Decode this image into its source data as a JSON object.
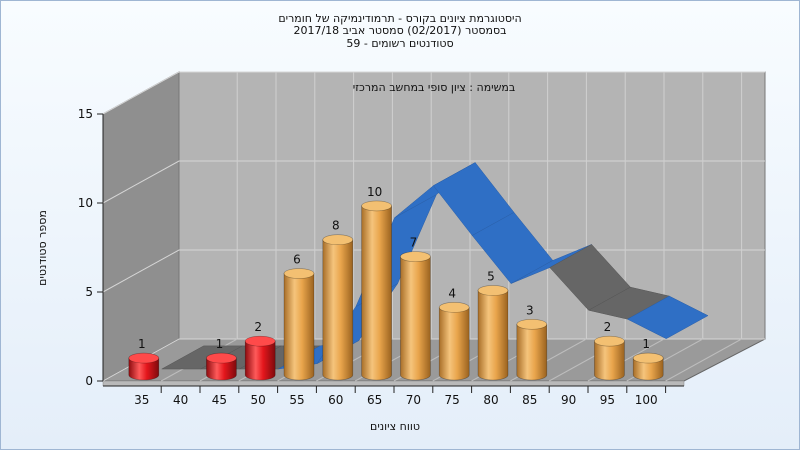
{
  "title_lines": [
    "היסטוגרמת ציונים בקורס - תרמודינמיקה של חומרים",
    "בסמסטר  (02/2017)  סמסטר אביב 2017/18",
    "סטודנטים רשומים - 59"
  ],
  "chart_data": {
    "type": "bar",
    "subtitle": "במשימה : ציון סופי במחשב המרכזי",
    "xlabel": "טווח ציונים",
    "ylabel": "מספר סטודנטים",
    "ylim": [
      0,
      15
    ],
    "yticks": [
      "0",
      "5",
      "10",
      "15"
    ],
    "x_tick_labels": [
      "35",
      "40",
      "45",
      "50",
      "55",
      "60",
      "65",
      "70",
      "75",
      "80",
      "85",
      "90",
      "95",
      "100"
    ],
    "bars": [
      {
        "x": 35,
        "value": 1,
        "label": "1",
        "status": "fail"
      },
      {
        "x": 45,
        "value": 1,
        "label": "1",
        "status": "fail"
      },
      {
        "x": 50,
        "value": 2,
        "label": "2",
        "status": "fail"
      },
      {
        "x": 55,
        "value": 6,
        "label": "6",
        "status": "pass"
      },
      {
        "x": 60,
        "value": 8,
        "label": "8",
        "status": "pass"
      },
      {
        "x": 65,
        "value": 10,
        "label": "10",
        "status": "pass"
      },
      {
        "x": 70,
        "value": 7,
        "label": "7",
        "status": "pass"
      },
      {
        "x": 75,
        "value": 4,
        "label": "4",
        "status": "pass"
      },
      {
        "x": 80,
        "value": 5,
        "label": "5",
        "status": "pass"
      },
      {
        "x": 85,
        "value": 3,
        "label": "3",
        "status": "pass"
      },
      {
        "x": 95,
        "value": 2,
        "label": "2",
        "status": "pass"
      },
      {
        "x": 100,
        "value": 1,
        "label": "1",
        "status": "pass"
      }
    ],
    "trend_series": {
      "x": [
        35,
        40,
        45,
        50,
        55,
        60,
        65,
        70,
        75,
        80,
        85,
        90,
        95,
        100
      ],
      "y": [
        0,
        0,
        0,
        0,
        0.3,
        3.5,
        8.5,
        10.3,
        7.5,
        4.8,
        5.7,
        3.3,
        2.8,
        1.7
      ]
    },
    "grid": true,
    "legend": "none",
    "colors": {
      "fail": "#e4161c",
      "pass": "#e9a54c",
      "trend": "#2f6fc5",
      "trend_dark": "#666666",
      "left_wall": "#8f8f8f",
      "back_wall": "#b4b4b4",
      "floor": "#9a9a9a"
    }
  }
}
